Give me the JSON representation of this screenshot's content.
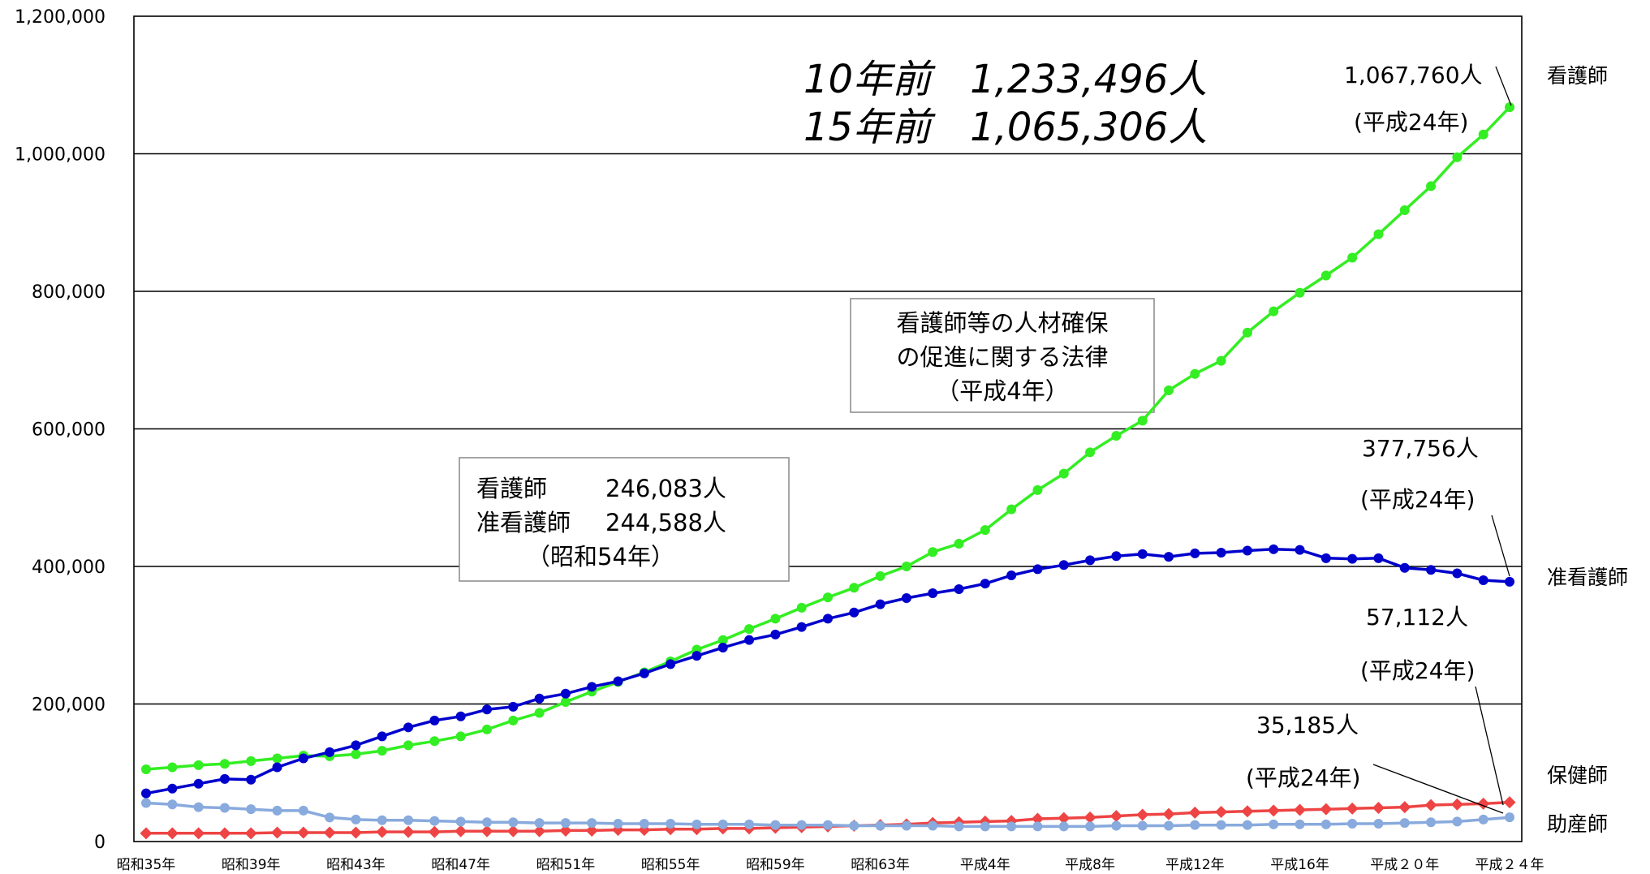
{
  "chart_data": {
    "type": "line",
    "ylim": [
      0,
      1200000
    ],
    "yticks": [
      "0",
      "200,000",
      "400,000",
      "600,000",
      "800,000",
      "1,000,000",
      "1,200,000"
    ],
    "grid": true,
    "x": [
      "昭和35年",
      "昭和36年",
      "昭和37年",
      "昭和38年",
      "昭和39年",
      "昭和40年",
      "昭和41年",
      "昭和42年",
      "昭和43年",
      "昭和44年",
      "昭和45年",
      "昭和46年",
      "昭和47年",
      "昭和48年",
      "昭和49年",
      "昭和50年",
      "昭和51年",
      "昭和52年",
      "昭和53年",
      "昭和54年",
      "昭和55年",
      "昭和56年",
      "昭和57年",
      "昭和58年",
      "昭和59年",
      "昭和60年",
      "昭和61年",
      "昭和62年",
      "昭和63年",
      "平成元年",
      "平成2年",
      "平成3年",
      "平成4年",
      "平成5年",
      "平成6年",
      "平成7年",
      "平成8年",
      "平成9年",
      "平成10年",
      "平成11年",
      "平成12年",
      "平成13年",
      "平成14年",
      "平成15年",
      "平成16年",
      "平成17年",
      "平成18年",
      "平成19年",
      "平成20年",
      "平成21年",
      "平成22年",
      "平成23年",
      "平成24年"
    ],
    "xtick_labels": [
      "昭和35年",
      "昭和39年",
      "昭和43年",
      "昭和47年",
      "昭和51年",
      "昭和55年",
      "昭和59年",
      "昭和63年",
      "平成4年",
      "平成8年",
      "平成12年",
      "平成16年",
      "平成２０年",
      "平成２４年"
    ],
    "series": [
      {
        "name": "看護師",
        "color": "#33ee22",
        "marker": "circle",
        "values": [
          105000,
          108000,
          111000,
          113000,
          117000,
          121000,
          125000,
          124000,
          127000,
          132000,
          140000,
          146000,
          153000,
          163000,
          176000,
          187000,
          203000,
          218000,
          232000,
          246083,
          262000,
          279000,
          293000,
          309000,
          324000,
          340000,
          355000,
          369000,
          386000,
          400000,
          421000,
          433000,
          453000,
          483000,
          511000,
          535000,
          566000,
          590000,
          612000,
          656000,
          680000,
          699000,
          740000,
          771000,
          798000,
          823000,
          849000,
          883000,
          918000,
          953000,
          995000,
          1028000,
          1067760
        ]
      },
      {
        "name": "准看護師",
        "color": "#0000cc",
        "marker": "circle",
        "values": [
          70000,
          77000,
          84000,
          91000,
          90000,
          108000,
          121000,
          130000,
          140000,
          153000,
          166000,
          176000,
          182000,
          192000,
          196000,
          208000,
          215000,
          225000,
          233000,
          244588,
          258000,
          270000,
          282000,
          293000,
          301000,
          312000,
          324000,
          333000,
          345000,
          354000,
          361000,
          367000,
          375000,
          387000,
          396000,
          402000,
          409000,
          415000,
          418000,
          414000,
          419000,
          420000,
          423000,
          425000,
          424000,
          412000,
          411000,
          412000,
          398000,
          395000,
          390000,
          380000,
          377756
        ]
      },
      {
        "name": "保健師",
        "color": "#ee4444",
        "marker": "diamond",
        "values": [
          12000,
          12000,
          12000,
          12000,
          12000,
          13000,
          13000,
          13000,
          13000,
          14000,
          14000,
          14000,
          15000,
          15000,
          15000,
          15000,
          16000,
          16000,
          17000,
          17000,
          18000,
          18000,
          19000,
          19000,
          20000,
          21000,
          22000,
          23000,
          24000,
          25000,
          27000,
          28000,
          29000,
          30000,
          33000,
          34000,
          35000,
          37000,
          39000,
          40000,
          42000,
          43000,
          44000,
          45000,
          46000,
          47000,
          48000,
          49000,
          50000,
          53000,
          54000,
          55000,
          57112
        ]
      },
      {
        "name": "助産師",
        "color": "#88aadd",
        "marker": "circle",
        "values": [
          56000,
          54000,
          50000,
          49000,
          47000,
          45000,
          45000,
          35000,
          32000,
          31000,
          31000,
          30000,
          29000,
          28000,
          28000,
          27000,
          27000,
          27000,
          26000,
          26000,
          26000,
          25000,
          25000,
          25000,
          24000,
          24000,
          24000,
          23000,
          23000,
          23000,
          23000,
          22000,
          22000,
          22000,
          22000,
          22000,
          22000,
          23000,
          23000,
          23000,
          24000,
          24000,
          24000,
          25000,
          25000,
          25000,
          26000,
          26000,
          27000,
          28000,
          29000,
          32000,
          35185
        ]
      }
    ]
  },
  "annotations": {
    "note_10y": "10年前　1,233,496人",
    "note_15y": "15年前　1,065,306人",
    "nurse_end_value": "1,067,760人",
    "nurse_end_year": "(平成24年)",
    "assoc_end_value": "377,756人",
    "assoc_end_year": "(平成24年)",
    "phn_end_value": "57,112人",
    "phn_end_year": "(平成24年)",
    "midwife_end_value": "35,185人",
    "midwife_end_year": "(平成24年)"
  },
  "law_box": {
    "line1": "看護師等の人材確保",
    "line2": "の促進に関する法律",
    "line3": "（平成4年）"
  },
  "showa54_box": {
    "line1_label": "看護師",
    "line1_value": "246,083人",
    "line2_label": "准看護師",
    "line2_value": "244,588人",
    "line3": "（昭和54年）"
  },
  "series_labels": {
    "nurse": "看護師",
    "assoc": "准看護師",
    "phn": "保健師",
    "midwife": "助産師"
  }
}
